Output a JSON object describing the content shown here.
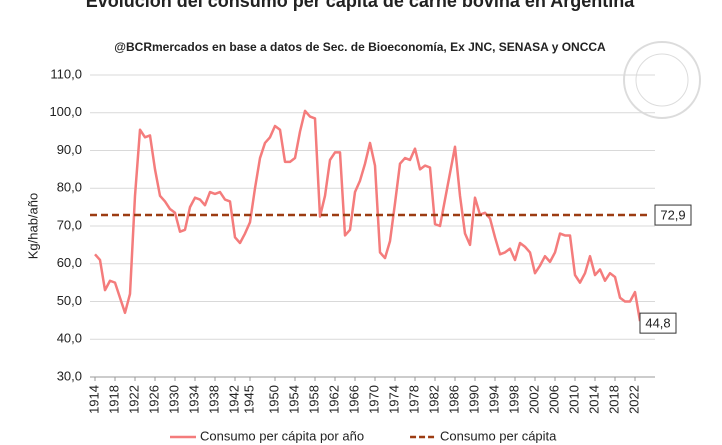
{
  "chart_data": {
    "type": "line",
    "title": "Evolución del consumo per cápita de carne bovina en Argentina",
    "subtitle": "@BCRmercados  en base a datos de Sec. de Bioeconomía,  Ex JNC, SENASA y ONCCA",
    "ylabel": "Kg/hab/año",
    "x": [
      1914,
      1915,
      1916,
      1917,
      1918,
      1919,
      1920,
      1921,
      1922,
      1923,
      1924,
      1925,
      1926,
      1927,
      1928,
      1929,
      1930,
      1931,
      1932,
      1933,
      1934,
      1935,
      1936,
      1937,
      1938,
      1939,
      1940,
      1941,
      1942,
      1943,
      1944,
      1945,
      1946,
      1947,
      1948,
      1949,
      1950,
      1951,
      1952,
      1953,
      1954,
      1955,
      1956,
      1957,
      1958,
      1959,
      1960,
      1961,
      1962,
      1963,
      1964,
      1965,
      1966,
      1967,
      1968,
      1969,
      1970,
      1971,
      1972,
      1973,
      1974,
      1975,
      1976,
      1977,
      1978,
      1979,
      1980,
      1981,
      1982,
      1983,
      1984,
      1985,
      1986,
      1987,
      1988,
      1989,
      1990,
      1991,
      1992,
      1993,
      1994,
      1995,
      1996,
      1997,
      1998,
      1999,
      2000,
      2001,
      2002,
      2003,
      2004,
      2005,
      2006,
      2007,
      2008,
      2009,
      2010,
      2011,
      2012,
      2013,
      2014,
      2015,
      2016,
      2017,
      2018,
      2019,
      2020,
      2021,
      2022,
      2023
    ],
    "series": [
      {
        "name": "Consumo per cápita por año",
        "color": "#f47c7c",
        "values": [
          62.5,
          61,
          53,
          55.5,
          55,
          51,
          47,
          52,
          78,
          95.5,
          93.5,
          94,
          85,
          78,
          76.5,
          74.5,
          73.5,
          68.5,
          69,
          75,
          77.5,
          77,
          75.5,
          79,
          78.5,
          79,
          77,
          76.5,
          67,
          65.5,
          68,
          71,
          80,
          88,
          92,
          93.5,
          96.5,
          95.5,
          87,
          87,
          88,
          95,
          100.5,
          99,
          98.5,
          72.5,
          78,
          87.5,
          89.5,
          89.5,
          67.5,
          69,
          79,
          82,
          86.5,
          92,
          86,
          63,
          61.5,
          66,
          76,
          86.5,
          88,
          87.5,
          90.5,
          85,
          86,
          85.5,
          70.5,
          70,
          77,
          84,
          91,
          78,
          68,
          65,
          77.5,
          73,
          73.5,
          72,
          67,
          62.5,
          63,
          64,
          61,
          65.5,
          64.5,
          63,
          57.5,
          59.5,
          62,
          60.5,
          63,
          68,
          67.5,
          67.5,
          57,
          55,
          57.5,
          62,
          57,
          58.5,
          55.5,
          57.5,
          56.5,
          51,
          50,
          50,
          52.5,
          44.8
        ],
        "value_labels": [
          null,
          null,
          null,
          null,
          null,
          null,
          null,
          null,
          null,
          null,
          null,
          null,
          null,
          null,
          null,
          null,
          null,
          null,
          null,
          null,
          null,
          null,
          null,
          null,
          null,
          null,
          null,
          null,
          null,
          null,
          null,
          null,
          null,
          null,
          null,
          null,
          null,
          null,
          null,
          null,
          null,
          null,
          null,
          null,
          null,
          null,
          null,
          null,
          null,
          null,
          null,
          null,
          null,
          null,
          null,
          null,
          null,
          null,
          null,
          null,
          null,
          null,
          null,
          null,
          null,
          null,
          null,
          null,
          null,
          null,
          null,
          null,
          null,
          null,
          null,
          null,
          null,
          null,
          null,
          null,
          null,
          null,
          null,
          null,
          null,
          null,
          null,
          null,
          null,
          null,
          null,
          null,
          null,
          null,
          null,
          null,
          null,
          null,
          null,
          null,
          null,
          null,
          null,
          null,
          null,
          null,
          null,
          null,
          null,
          "44,8"
        ]
      },
      {
        "name": "Consumo per cápita",
        "color": "#9c3c12",
        "reference": true,
        "value": 72.9,
        "value_label": "72,9"
      }
    ],
    "xlim": [
      1913,
      2026
    ],
    "xticks": [
      1914,
      1918,
      1922,
      1926,
      1930,
      1934,
      1938,
      1942,
      1945,
      1950,
      1954,
      1958,
      1962,
      1966,
      1970,
      1974,
      1978,
      1982,
      1986,
      1990,
      1994,
      1998,
      2002,
      2006,
      2010,
      2014,
      2018,
      2022
    ],
    "ylim": [
      30,
      110
    ],
    "yticks": [
      {
        "value": 30,
        "label": "30,0"
      },
      {
        "value": 40,
        "label": "40,0"
      },
      {
        "value": 50,
        "label": "50,0"
      },
      {
        "value": 60,
        "label": "60,0"
      },
      {
        "value": 70,
        "label": "70,0"
      },
      {
        "value": 80,
        "label": "80,0"
      },
      {
        "value": 90,
        "label": "90,0"
      },
      {
        "value": 100,
        "label": "100,0"
      },
      {
        "value": 110,
        "label": "110,0"
      }
    ],
    "grid": true,
    "legend": "bottom"
  }
}
